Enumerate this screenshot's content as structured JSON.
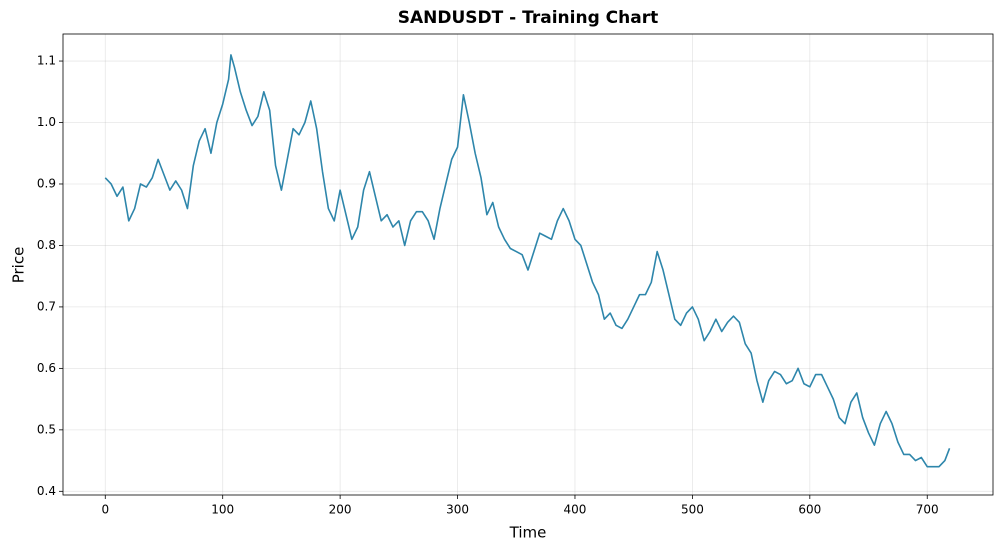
{
  "chart_data": {
    "type": "line",
    "title": "SANDUSDT - Training Chart",
    "x_label": "Time",
    "y_label": "Price",
    "x": [
      0,
      5,
      10,
      15,
      20,
      25,
      30,
      35,
      40,
      45,
      50,
      55,
      60,
      65,
      70,
      75,
      80,
      85,
      90,
      95,
      100,
      105,
      107,
      110,
      115,
      120,
      125,
      130,
      135,
      140,
      145,
      150,
      155,
      160,
      165,
      170,
      175,
      180,
      185,
      190,
      195,
      200,
      205,
      210,
      215,
      220,
      225,
      230,
      235,
      240,
      245,
      250,
      255,
      260,
      265,
      270,
      275,
      280,
      285,
      290,
      295,
      300,
      305,
      310,
      315,
      320,
      325,
      330,
      335,
      340,
      345,
      350,
      355,
      360,
      365,
      370,
      375,
      380,
      385,
      390,
      395,
      400,
      405,
      410,
      415,
      420,
      425,
      430,
      435,
      440,
      445,
      450,
      455,
      460,
      465,
      470,
      475,
      480,
      485,
      490,
      495,
      500,
      505,
      510,
      515,
      520,
      525,
      530,
      535,
      540,
      545,
      550,
      555,
      560,
      565,
      570,
      575,
      580,
      585,
      590,
      595,
      600,
      605,
      610,
      615,
      620,
      625,
      630,
      635,
      640,
      645,
      650,
      655,
      660,
      665,
      670,
      675,
      680,
      685,
      690,
      695,
      700,
      705,
      710,
      715,
      719
    ],
    "series": [
      {
        "name": "SANDUSDT",
        "color": "#2e86ab",
        "values": [
          0.91,
          0.9,
          0.88,
          0.895,
          0.84,
          0.86,
          0.9,
          0.895,
          0.91,
          0.94,
          0.915,
          0.89,
          0.905,
          0.89,
          0.86,
          0.93,
          0.97,
          0.99,
          0.95,
          1.0,
          1.03,
          1.07,
          1.11,
          1.09,
          1.05,
          1.02,
          0.995,
          1.01,
          1.05,
          1.02,
          0.93,
          0.89,
          0.94,
          0.99,
          0.98,
          1.0,
          1.035,
          0.99,
          0.92,
          0.86,
          0.84,
          0.89,
          0.85,
          0.81,
          0.83,
          0.89,
          0.92,
          0.88,
          0.84,
          0.85,
          0.83,
          0.84,
          0.8,
          0.84,
          0.855,
          0.855,
          0.84,
          0.81,
          0.86,
          0.9,
          0.94,
          0.96,
          1.045,
          1.0,
          0.95,
          0.91,
          0.85,
          0.87,
          0.83,
          0.81,
          0.795,
          0.79,
          0.785,
          0.76,
          0.79,
          0.82,
          0.815,
          0.81,
          0.84,
          0.86,
          0.84,
          0.81,
          0.8,
          0.77,
          0.74,
          0.72,
          0.68,
          0.69,
          0.67,
          0.665,
          0.68,
          0.7,
          0.72,
          0.72,
          0.74,
          0.79,
          0.76,
          0.72,
          0.68,
          0.67,
          0.69,
          0.7,
          0.68,
          0.645,
          0.66,
          0.68,
          0.66,
          0.675,
          0.685,
          0.675,
          0.64,
          0.625,
          0.58,
          0.545,
          0.58,
          0.595,
          0.59,
          0.575,
          0.58,
          0.6,
          0.575,
          0.57,
          0.59,
          0.59,
          0.57,
          0.55,
          0.52,
          0.51,
          0.545,
          0.56,
          0.52,
          0.495,
          0.475,
          0.51,
          0.53,
          0.51,
          0.48,
          0.46,
          0.46,
          0.45,
          0.455,
          0.44,
          0.44,
          0.44,
          0.45,
          0.47
        ]
      }
    ],
    "xlim": [
      -36,
      756
    ],
    "ylim": [
      0.394,
      1.144
    ],
    "xticks": [
      0,
      100,
      200,
      300,
      400,
      500,
      600,
      700
    ],
    "yticks": [
      0.4,
      0.5,
      0.6,
      0.7,
      0.8,
      0.9,
      {
        "value": 1,
        "label": "1.0"
      },
      1.1
    ],
    "grid": true
  }
}
